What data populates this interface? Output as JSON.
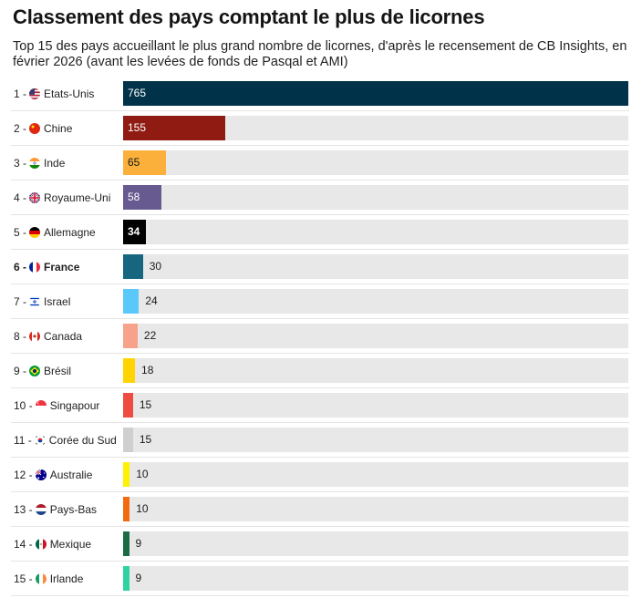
{
  "title": "Classement des pays comptant le plus de licornes",
  "subtitle": "Top 15 des pays accueillant le plus grand nombre de licornes, d'après le recensement de CB Insights, en février 2026 (avant les levées de fonds de Pasqal et AMI)",
  "chart_data": {
    "type": "bar",
    "orientation": "horizontal",
    "title": "Classement des pays comptant le plus de licornes",
    "xlim": [
      0,
      765
    ],
    "categories": [
      "Etats-Unis",
      "Chine",
      "Inde",
      "Royaume-Uni",
      "Allemagne",
      "France",
      "Israel",
      "Canada",
      "Brésil",
      "Singapour",
      "Corée du Sud",
      "Australie",
      "Pays-Bas",
      "Mexique",
      "Irlande"
    ],
    "values": [
      765,
      155,
      65,
      58,
      34,
      30,
      24,
      22,
      18,
      15,
      15,
      10,
      10,
      9,
      9
    ],
    "rows": [
      {
        "rank": "1 -",
        "country": "Etats-Unis",
        "value": 765,
        "color": "#003349",
        "flag": "us-flag-icon",
        "bold": false,
        "label_inside": true
      },
      {
        "rank": "2 -",
        "country": "Chine",
        "value": 155,
        "color": "#8f1b13",
        "flag": "china-flag-icon",
        "bold": false,
        "label_inside": true
      },
      {
        "rank": "3 -",
        "country": "Inde",
        "value": 65,
        "color": "#fbb03b",
        "flag": "india-flag-icon",
        "bold": false,
        "label_inside": true
      },
      {
        "rank": "4 -",
        "country": "Royaume-Uni",
        "value": 58,
        "color": "#675a91",
        "flag": "uk-flag-icon",
        "bold": false,
        "label_inside": true
      },
      {
        "rank": "5 -",
        "country": "Allemagne",
        "value": 34,
        "color": "#000000",
        "flag": "germany-flag-icon",
        "bold": false,
        "label_inside": true
      },
      {
        "rank": "6 -",
        "country": "France",
        "value": 30,
        "color": "#176680",
        "flag": "france-flag-icon",
        "bold": true,
        "label_inside": false
      },
      {
        "rank": "7 -",
        "country": "Israel",
        "value": 24,
        "color": "#5ac8fa",
        "flag": "israel-flag-icon",
        "bold": false,
        "label_inside": false
      },
      {
        "rank": "8 -",
        "country": "Canada",
        "value": 22,
        "color": "#f7a28a",
        "flag": "canada-flag-icon",
        "bold": false,
        "label_inside": false
      },
      {
        "rank": "9 -",
        "country": "Brésil",
        "value": 18,
        "color": "#ffd400",
        "flag": "brazil-flag-icon",
        "bold": false,
        "label_inside": false
      },
      {
        "rank": "10 -",
        "country": "Singapour",
        "value": 15,
        "color": "#f04b41",
        "flag": "singapore-flag-icon",
        "bold": false,
        "label_inside": false
      },
      {
        "rank": "11 -",
        "country": "Corée du Sud",
        "value": 15,
        "color": "#cfcfcf",
        "flag": "south-korea-flag-icon",
        "bold": false,
        "label_inside": false
      },
      {
        "rank": "12 -",
        "country": "Australie",
        "value": 10,
        "color": "#fff200",
        "flag": "australia-flag-icon",
        "bold": false,
        "label_inside": false
      },
      {
        "rank": "13 -",
        "country": "Pays-Bas",
        "value": 10,
        "color": "#f26b10",
        "flag": "netherlands-flag-icon",
        "bold": false,
        "label_inside": false
      },
      {
        "rank": "14 -",
        "country": "Mexique",
        "value": 9,
        "color": "#1b6b47",
        "flag": "mexico-flag-icon",
        "bold": false,
        "label_inside": false
      },
      {
        "rank": "15 -",
        "country": "Irlande",
        "value": 9,
        "color": "#2ed3a3",
        "flag": "ireland-flag-icon",
        "bold": false,
        "label_inside": false
      }
    ]
  }
}
